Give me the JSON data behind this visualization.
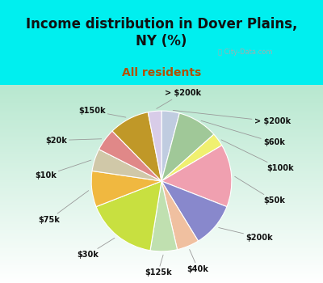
{
  "title": "Income distribution in Dover Plains,\nNY (%)",
  "subtitle": "All residents",
  "bg_cyan": "#00EFEF",
  "bg_chart": "#d8f0e0",
  "watermark": "ⓘ City-Data.com",
  "slices": [
    {
      "label": "> $200k",
      "value": 4,
      "color": "#c0cce0"
    },
    {
      "label": "$60k",
      "value": 9,
      "color": "#a0c898"
    },
    {
      "label": "$100k",
      "value": 3,
      "color": "#f0f070"
    },
    {
      "label": "$50k",
      "value": 14,
      "color": "#f0a0b0"
    },
    {
      "label": "$200k",
      "value": 10,
      "color": "#8888cc"
    },
    {
      "label": "$40k",
      "value": 5,
      "color": "#f0c0a0"
    },
    {
      "label": "$125k",
      "value": 6,
      "color": "#c0e0b0"
    },
    {
      "label": "$30k",
      "value": 16,
      "color": "#c8e040"
    },
    {
      "label": "$75k",
      "value": 8,
      "color": "#f0b840"
    },
    {
      "label": "$10k",
      "value": 5,
      "color": "#d0c8a8"
    },
    {
      "label": "$20k",
      "value": 5,
      "color": "#e08888"
    },
    {
      "label": "$150k",
      "value": 9,
      "color": "#c09828"
    },
    {
      "label": "> $200k_b",
      "value": 3,
      "color": "#d8cce8"
    }
  ],
  "label_fontsize": 7,
  "title_fontsize": 12,
  "subtitle_fontsize": 10,
  "title_color": "#111111",
  "subtitle_color": "#b05000",
  "watermark_color": "#aaaaaa"
}
